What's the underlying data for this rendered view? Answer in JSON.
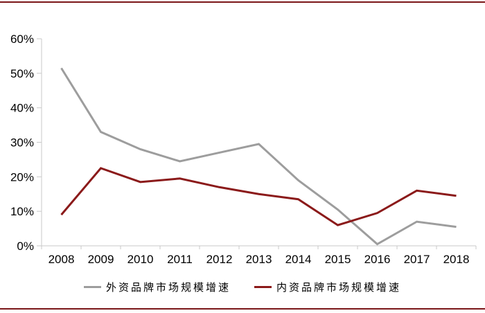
{
  "chart_data": {
    "type": "line",
    "title": "",
    "xlabel": "",
    "ylabel": "",
    "categories": [
      "2008",
      "2009",
      "2010",
      "2011",
      "2012",
      "2013",
      "2014",
      "2015",
      "2016",
      "2017",
      "2018"
    ],
    "series": [
      {
        "name": "外资品牌市场规模增速",
        "color": "#9d9d9d",
        "values": [
          51.5,
          33,
          28,
          24.5,
          27,
          29.5,
          19,
          10.5,
          0.5,
          7,
          5.5
        ]
      },
      {
        "name": "内资品牌市场规模增速",
        "color": "#8b1a1a",
        "values": [
          9,
          22.5,
          18.5,
          19.5,
          17,
          15,
          13.5,
          6,
          9.5,
          16,
          14.5
        ]
      }
    ],
    "ylim": [
      0,
      60
    ],
    "ytick_step": 10,
    "ytick_labels": [
      "0%",
      "10%",
      "20%",
      "30%",
      "40%",
      "50%",
      "60%"
    ],
    "grid": false,
    "legend_position": "bottom"
  },
  "style": {
    "frame_border_color": "#7a1517",
    "axis_line_color": "#c9c9c9",
    "tick_text_color": "#000000"
  }
}
